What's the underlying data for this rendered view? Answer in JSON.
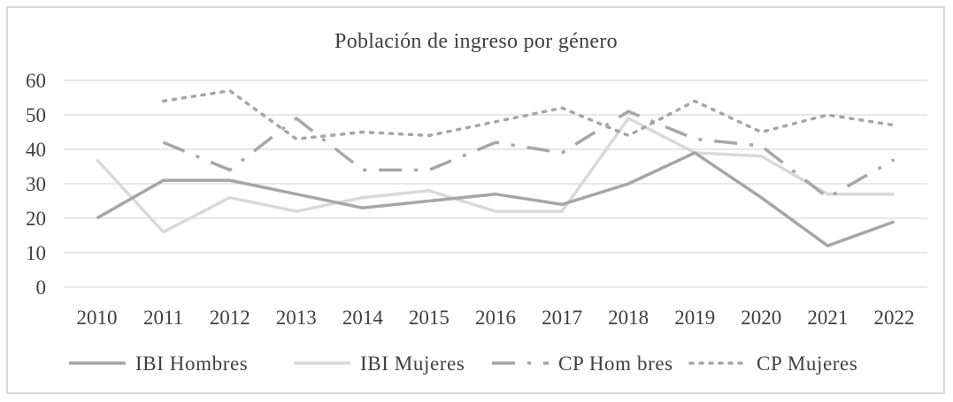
{
  "colors": {
    "ibi_hombres": "#a6a6a6",
    "ibi_mujeres": "#d9d9d9",
    "cp_hombres": "#a6a6a6",
    "cp_mujeres": "#a6a6a6",
    "gridline": "#d9d9d9",
    "text": "#404040"
  },
  "chart_data": {
    "type": "line",
    "title": "Población  de ingreso  por género",
    "xlabel": "",
    "ylabel": "",
    "categories": [
      "2010",
      "2011",
      "2012",
      "2013",
      "2014",
      "2015",
      "2016",
      "2017",
      "2018",
      "2019",
      "2020",
      "2021",
      "2022"
    ],
    "y_ticks": [
      0,
      10,
      20,
      30,
      40,
      50,
      60
    ],
    "ylim": [
      0,
      60
    ],
    "grid": true,
    "legend_position": "bottom",
    "series": [
      {
        "key": "ibi_hombres",
        "name": "IBI Hombres",
        "style": "solid",
        "values": [
          20,
          31,
          31,
          27,
          23,
          25,
          27,
          24,
          30,
          39,
          26,
          12,
          19
        ]
      },
      {
        "key": "ibi_mujeres",
        "name": "IBI Mujeres",
        "style": "solid",
        "values": [
          37,
          16,
          26,
          22,
          26,
          28,
          22,
          22,
          49,
          39,
          38,
          27,
          27
        ]
      },
      {
        "key": "cp_hombres",
        "name": "CP Hom bres",
        "style": "dash-dot",
        "values": [
          null,
          42,
          34,
          49,
          34,
          34,
          42,
          39,
          51,
          43,
          41,
          26,
          37
        ]
      },
      {
        "key": "cp_mujeres",
        "name": "CP Mujeres",
        "style": "dotted",
        "values": [
          null,
          54,
          57,
          43,
          45,
          44,
          48,
          52,
          44,
          54,
          45,
          50,
          47
        ]
      }
    ]
  }
}
